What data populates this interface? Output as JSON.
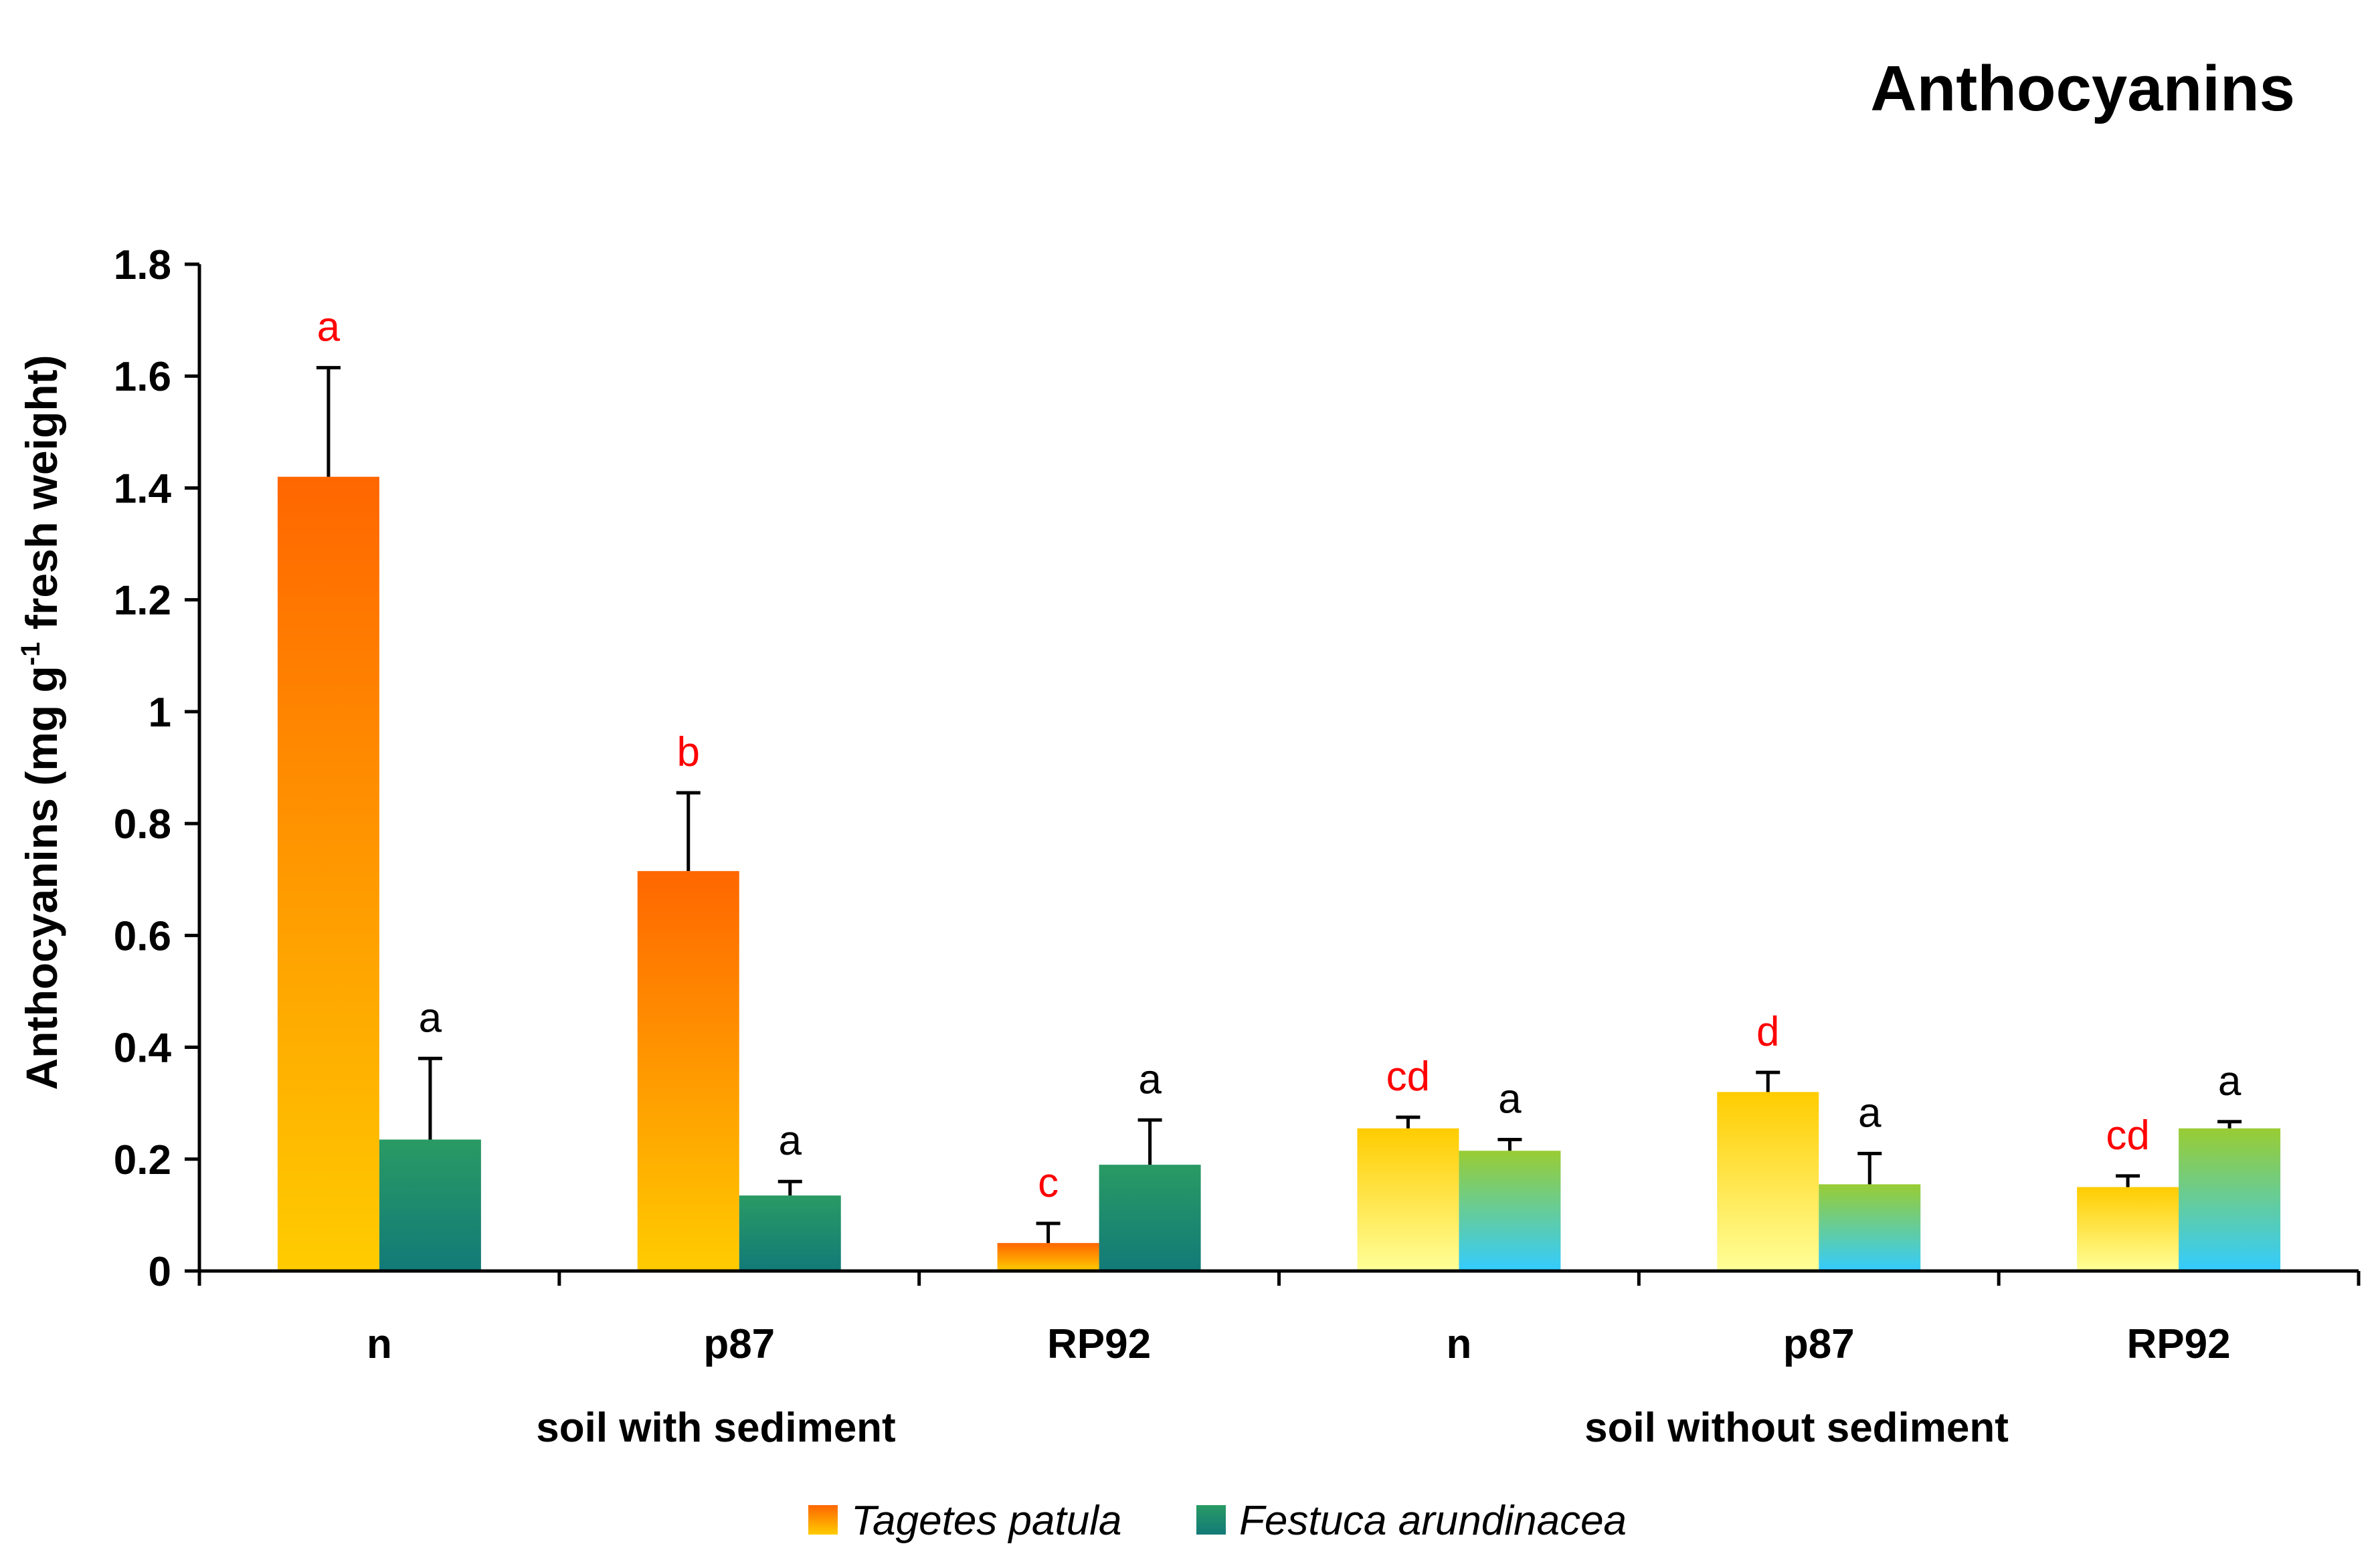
{
  "chart_data": {
    "type": "bar",
    "title": "Anthocyanins",
    "ylabel": {
      "pre": "Anthocyanins (mg g",
      "sup": "-1",
      "post": " fresh weight)"
    },
    "ylim": [
      0,
      1.8
    ],
    "yticks": [
      "0",
      "0.2",
      "0.4",
      "0.6",
      "0.8",
      "1",
      "1.2",
      "1.4",
      "1.6",
      "1.8"
    ],
    "categories": [
      "n",
      "p87",
      "RP92",
      "n",
      "p87",
      "RP92"
    ],
    "groups": [
      {
        "label": "soil with sediment",
        "categories": [
          0,
          1,
          2
        ]
      },
      {
        "label": "soil without sediment",
        "categories": [
          3,
          4,
          5
        ]
      }
    ],
    "series": [
      {
        "name": "Tagetes patula",
        "values": [
          1.42,
          0.715,
          0.05,
          0.255,
          0.32,
          0.15
        ],
        "errors": [
          0.195,
          0.14,
          0.035,
          0.02,
          0.035,
          0.02
        ],
        "letters": [
          "a",
          "b",
          "c",
          "cd",
          "d",
          "cd"
        ],
        "letter_color": "#ff0000"
      },
      {
        "name": "Festuca arundinacea",
        "values": [
          0.235,
          0.135,
          0.19,
          0.215,
          0.155,
          0.255
        ],
        "errors": [
          0.145,
          0.025,
          0.08,
          0.02,
          0.055,
          0.012
        ],
        "letters": [
          "a",
          "a",
          "a",
          "a",
          "a",
          "a"
        ],
        "letter_color": "#000000"
      }
    ],
    "colors": {
      "tagetes_with_sediment": [
        "#ff6600",
        "#ffcc00"
      ],
      "festuca_with_sediment": [
        "#2a9a64",
        "#127a78"
      ],
      "tagetes_without_sediment": [
        "#ffcc00",
        "#ffff99"
      ],
      "festuca_without_sediment": [
        "#99cc33",
        "#33ccff"
      ]
    },
    "legend": {
      "placement": "bottom-center"
    }
  }
}
